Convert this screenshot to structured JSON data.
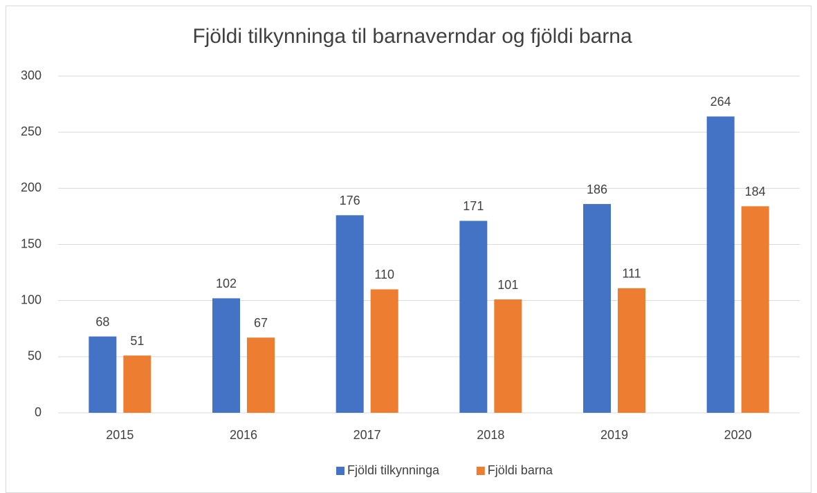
{
  "chart_data": {
    "type": "bar",
    "title": "Fjöldi tilkynninga til barnaverndar og fjöldi barna",
    "categories": [
      "2015",
      "2016",
      "2017",
      "2018",
      "2019",
      "2020"
    ],
    "series": [
      {
        "name": "Fjöldi tilkynninga",
        "color": "#4472c4",
        "values": [
          68,
          102,
          176,
          171,
          186,
          264
        ]
      },
      {
        "name": "Fjöldi barna",
        "color": "#ed7d31",
        "values": [
          51,
          67,
          110,
          101,
          111,
          184
        ]
      }
    ],
    "ylim": [
      0,
      300
    ],
    "yticks": [
      0,
      50,
      100,
      150,
      200,
      250,
      300
    ],
    "grid": true,
    "legend": "bottom"
  }
}
